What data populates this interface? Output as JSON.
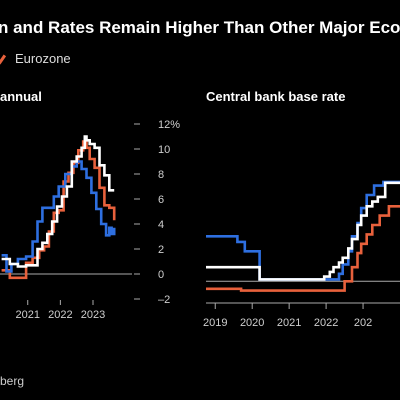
{
  "header": {
    "title": "n and Rates Remain Higher Than Other Major Eco",
    "legend_item": "Eurozone"
  },
  "source": "berg",
  "colors": {
    "background": "#000000",
    "uk": "#ffffff",
    "us": "#2e6fe0",
    "eurozone": "#e8613c",
    "axis": "#aaaaaa"
  },
  "chart_data": [
    {
      "type": "line",
      "title": "annual",
      "ylim": [
        -2,
        12
      ],
      "y_ticks": [
        "12%",
        "10",
        "8",
        "6",
        "4",
        "2",
        "0",
        "-2"
      ],
      "x_ticks": [
        "2021",
        "2022",
        "2023"
      ],
      "x_range": [
        2020.2,
        2024.0
      ],
      "series": [
        {
          "key": "uk",
          "x": [
            2020.25,
            2020.5,
            2020.75,
            2021.0,
            2021.2,
            2021.35,
            2021.5,
            2021.65,
            2021.8,
            2021.95,
            2022.1,
            2022.25,
            2022.4,
            2022.55,
            2022.7,
            2022.8,
            2022.85,
            2022.95,
            2023.1,
            2023.25,
            2023.4,
            2023.55,
            2023.7
          ],
          "y": [
            1.2,
            0.8,
            0.6,
            0.7,
            0.7,
            2.0,
            2.5,
            3.2,
            4.2,
            5.4,
            6.2,
            7.0,
            9.0,
            9.4,
            10.1,
            11.0,
            10.7,
            10.4,
            10.1,
            8.7,
            7.9,
            6.7,
            6.7
          ]
        },
        {
          "key": "us",
          "x": [
            2020.25,
            2020.4,
            2020.55,
            2020.75,
            2021.0,
            2021.2,
            2021.35,
            2021.5,
            2021.65,
            2021.85,
            2022.0,
            2022.2,
            2022.4,
            2022.55,
            2022.7,
            2022.85,
            2023.0,
            2023.15,
            2023.3,
            2023.45,
            2023.55,
            2023.62,
            2023.7
          ],
          "y": [
            1.5,
            0.2,
            0.8,
            1.2,
            1.4,
            2.6,
            4.2,
            5.3,
            5.3,
            6.2,
            7.0,
            8.0,
            8.6,
            9.0,
            8.4,
            7.7,
            6.5,
            5.2,
            4.0,
            3.1,
            3.7,
            3.2,
            3.7
          ]
        },
        {
          "key": "eurozone",
          "x": [
            2020.25,
            2020.5,
            2020.75,
            2021.0,
            2021.2,
            2021.4,
            2021.55,
            2021.7,
            2021.85,
            2022.0,
            2022.15,
            2022.3,
            2022.45,
            2022.6,
            2022.75,
            2022.85,
            2022.95,
            2023.1,
            2023.25,
            2023.4,
            2023.55,
            2023.7
          ],
          "y": [
            0.3,
            -0.3,
            -0.3,
            0.9,
            1.3,
            1.9,
            2.2,
            3.4,
            4.9,
            5.1,
            7.4,
            8.1,
            8.9,
            9.9,
            10.6,
            10.1,
            9.2,
            8.5,
            6.9,
            5.5,
            5.3,
            4.3
          ]
        }
      ]
    },
    {
      "type": "line",
      "title": "Central bank base rate",
      "ylim": [
        -1,
        7
      ],
      "x_ticks": [
        "2019",
        "2020",
        "2021",
        "2022",
        "202"
      ],
      "x_range": [
        2018.75,
        2024.0
      ],
      "series": [
        {
          "key": "uk",
          "x": [
            2018.75,
            2020.2,
            2020.2,
            2021.95,
            2021.95,
            2022.1,
            2022.2,
            2022.35,
            2022.45,
            2022.6,
            2022.7,
            2022.85,
            2022.95,
            2023.1,
            2023.25,
            2023.4,
            2023.6,
            2024.0
          ],
          "y": [
            0.75,
            0.75,
            0.1,
            0.1,
            0.25,
            0.5,
            0.75,
            1.0,
            1.25,
            1.75,
            2.25,
            3.0,
            3.5,
            4.0,
            4.25,
            4.5,
            5.25,
            5.25
          ]
        },
        {
          "key": "us",
          "x": [
            2018.75,
            2019.5,
            2019.6,
            2019.8,
            2020.2,
            2020.2,
            2022.2,
            2022.35,
            2022.45,
            2022.6,
            2022.7,
            2022.85,
            2022.95,
            2023.1,
            2023.3,
            2023.55,
            2024.0
          ],
          "y": [
            2.4,
            2.4,
            2.1,
            1.6,
            1.6,
            0.1,
            0.1,
            0.4,
            0.9,
            1.6,
            2.4,
            3.1,
            3.9,
            4.6,
            5.1,
            5.3,
            5.3
          ]
        },
        {
          "key": "eurozone",
          "x": [
            2018.75,
            2019.7,
            2019.7,
            2022.5,
            2022.5,
            2022.7,
            2022.85,
            2022.95,
            2023.1,
            2023.25,
            2023.45,
            2023.7,
            2024.0
          ],
          "y": [
            -0.4,
            -0.4,
            -0.5,
            -0.5,
            0.0,
            0.75,
            1.5,
            2.0,
            2.5,
            3.0,
            3.5,
            4.0,
            4.0
          ]
        }
      ]
    }
  ]
}
